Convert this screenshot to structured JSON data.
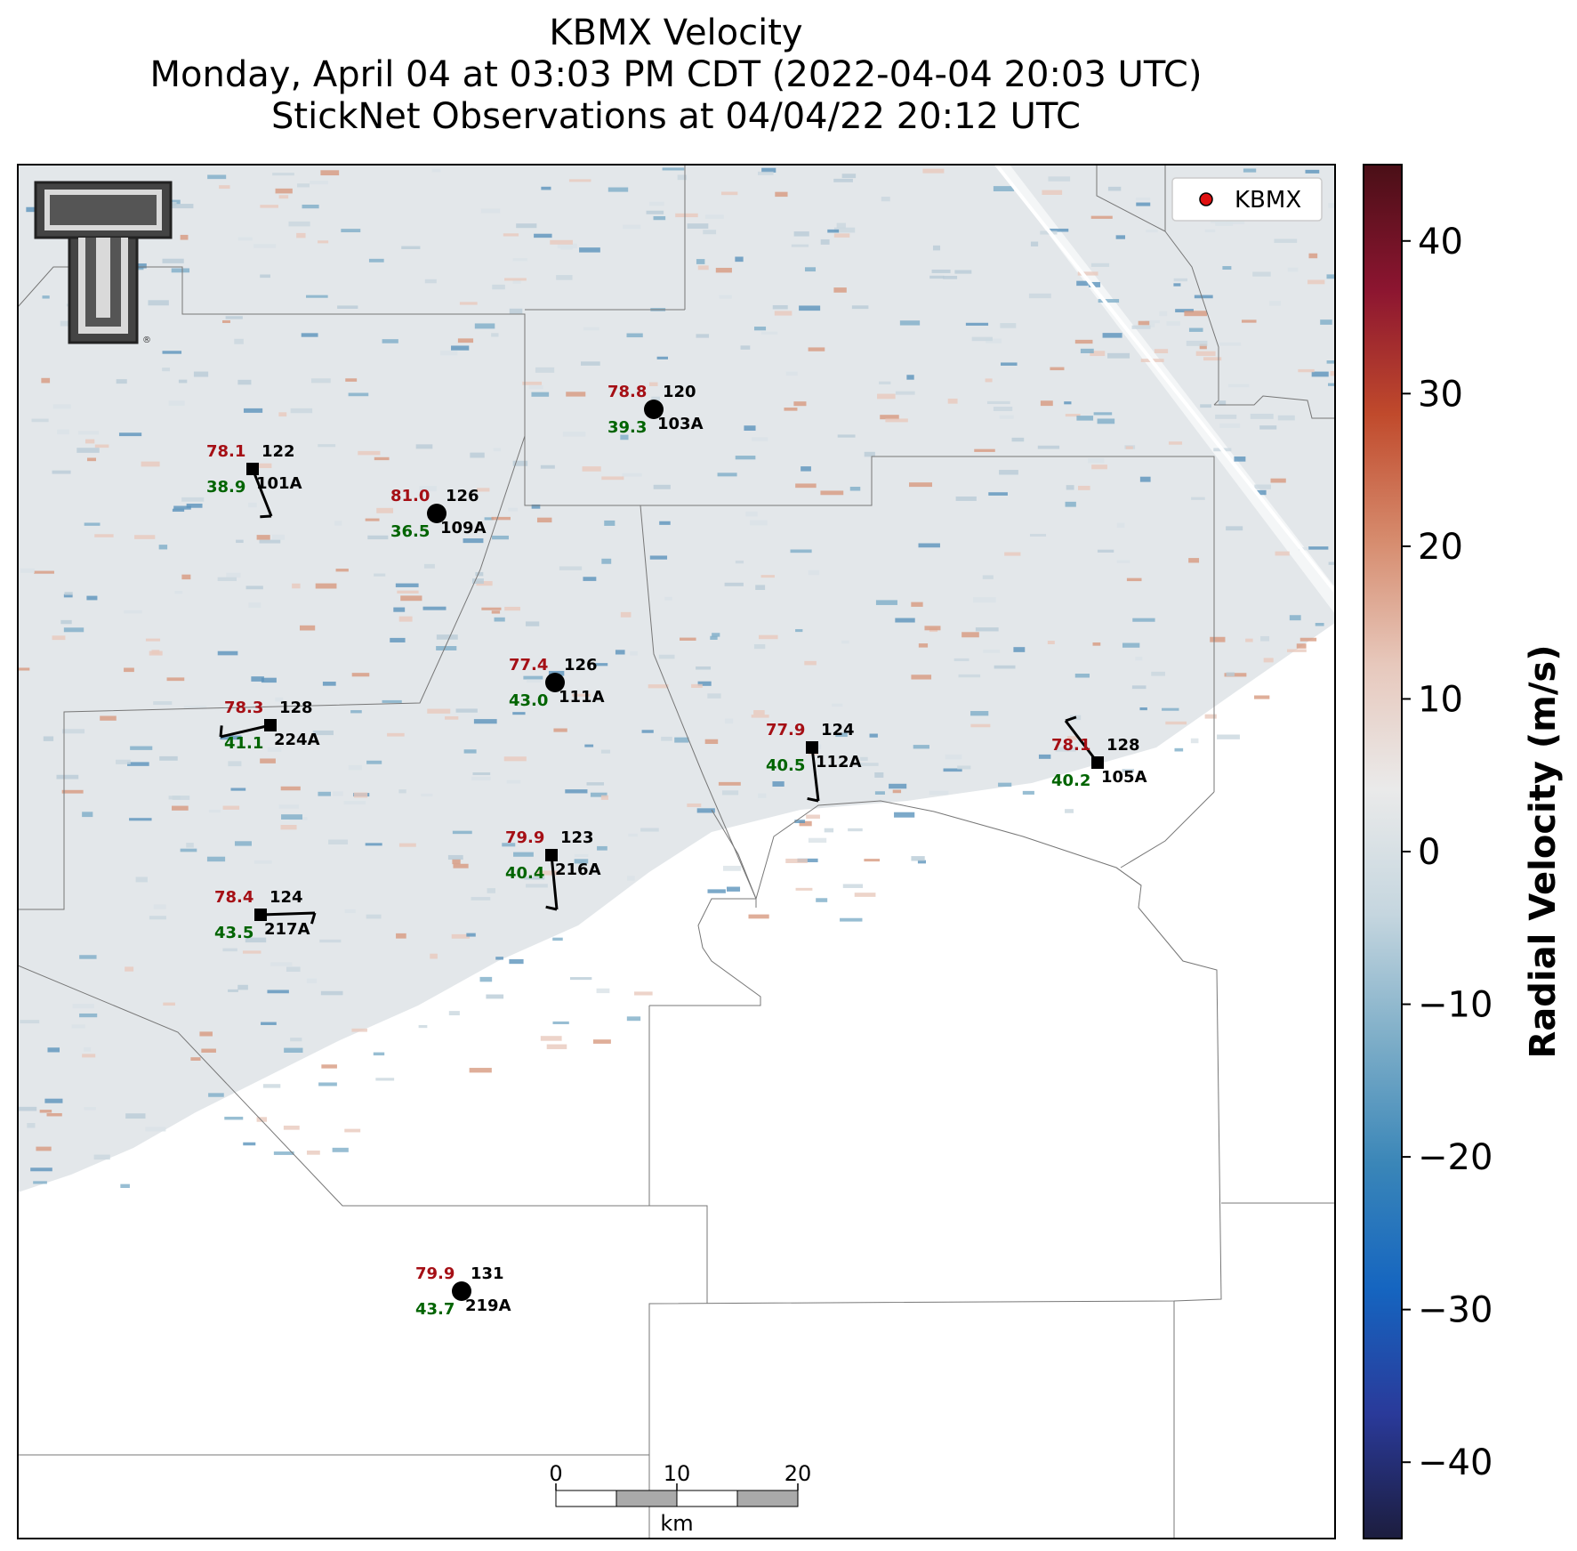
{
  "title": {
    "line1": "KBMX Velocity",
    "line2": "Monday, April 04 at 03:03 PM CDT (2022-04-04 20:03 UTC)",
    "line3": "StickNet Observations at 04/04/22 20:12 UTC"
  },
  "legend": {
    "label": "KBMX",
    "marker_color": "#e01010"
  },
  "colorbar": {
    "label": "Radial Velocity (m/s)",
    "ticks": [
      "40",
      "30",
      "20",
      "10",
      "0",
      "−10",
      "−20",
      "−30",
      "−40"
    ],
    "range": [
      -45,
      45
    ],
    "colors": [
      "#1c1d3e",
      "#2a3a9a",
      "#1565c0",
      "#3a86b8",
      "#7eaec8",
      "#c5d6df",
      "#eaeaea",
      "#e7c8bc",
      "#d68b6d",
      "#c04a2c",
      "#8c1530",
      "#4a0f17"
    ]
  },
  "scalebar": {
    "ticks": [
      "0",
      "10",
      "20"
    ],
    "unit": "km"
  },
  "logo": {
    "name": "Texas Tech double-T",
    "mark": "®"
  },
  "stations": [
    {
      "id": "101A",
      "temp": "78.1",
      "dew": "38.9",
      "pressure": "122",
      "marker": "square"
    },
    {
      "id": "109A",
      "temp": "81.0",
      "dew": "36.5",
      "pressure": "126",
      "marker": "circle"
    },
    {
      "id": "103A",
      "temp": "78.8",
      "dew": "39.3",
      "pressure": "120",
      "marker": "circle"
    },
    {
      "id": "111A",
      "temp": "77.4",
      "dew": "43.0",
      "pressure": "126",
      "marker": "circle"
    },
    {
      "id": "224A",
      "temp": "78.3",
      "dew": "41.1",
      "pressure": "128",
      "marker": "square"
    },
    {
      "id": "112A",
      "temp": "77.9",
      "dew": "40.5",
      "pressure": "124",
      "marker": "square"
    },
    {
      "id": "105A",
      "temp": "78.1",
      "dew": "40.2",
      "pressure": "128",
      "marker": "square"
    },
    {
      "id": "216A",
      "temp": "79.9",
      "dew": "40.4",
      "pressure": "123",
      "marker": "square"
    },
    {
      "id": "217A",
      "temp": "78.4",
      "dew": "43.5",
      "pressure": "124",
      "marker": "square"
    },
    {
      "id": "219A",
      "temp": "79.9",
      "dew": "43.7",
      "pressure": "131",
      "marker": "circle"
    }
  ],
  "colors": {
    "temp": "#a50f15",
    "dew": "#006400",
    "station_text": "#000000"
  }
}
